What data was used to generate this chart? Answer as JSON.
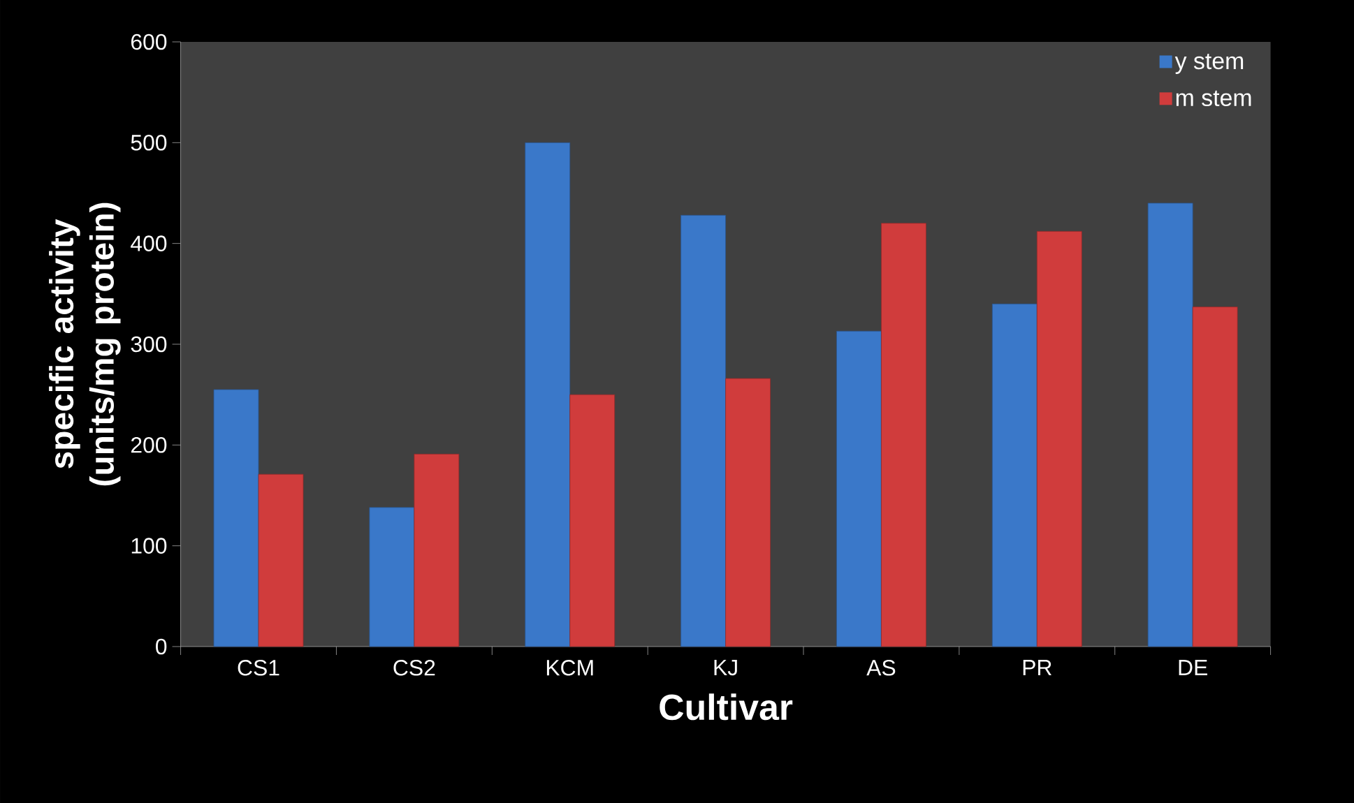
{
  "chart_data": {
    "type": "bar",
    "xlabel": "Cultivar",
    "ylabel": "specific activity (units/mg protein)",
    "categories": [
      "CS1",
      "CS2",
      "KCM",
      "KJ",
      "AS",
      "PR",
      "DE"
    ],
    "series": [
      {
        "name": "y stem",
        "color": "#3a78c9",
        "values": [
          255,
          138,
          500,
          428,
          313,
          340,
          440
        ]
      },
      {
        "name": "m stem",
        "color": "#d03c3c",
        "values": [
          171,
          191,
          250,
          266,
          420,
          412,
          337
        ]
      }
    ],
    "ylim": [
      0,
      600
    ],
    "yticks": [
      0,
      100,
      200,
      300,
      400,
      500,
      600
    ],
    "legend": "top right"
  }
}
